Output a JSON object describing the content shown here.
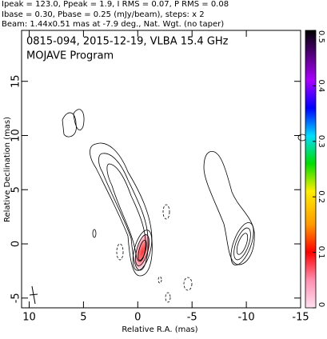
{
  "chart_data": {
    "type": "contour",
    "header": [
      "Ipeak = 123.0, Ppeak = 1.9, I RMS = 0.07, P RMS = 0.08",
      "Ibase = 0.30, Pbase = 0.25 (mJy/beam), steps: x 2",
      "Beam: 1.44x0.51 mas at -7.9 deg., Nat. Wgt. (no taper)"
    ],
    "title": "0815-094, 2015-12-19, VLBA 15.4 GHz",
    "subtitle": "MOJAVE Program",
    "xlabel": "Relative R.A. (mas)",
    "ylabel": "Relative Declination (mas)",
    "xlim": [
      10.7,
      -15
    ],
    "xticks": [
      10,
      5,
      0,
      -5,
      -10,
      -15
    ],
    "ylim": [
      -5.9,
      19.7
    ],
    "yticks": [
      -5,
      0,
      5,
      10,
      15
    ],
    "colorbar_lim": [
      0,
      0.5
    ],
    "colorbar_ticks": [
      0,
      0.1,
      0.2,
      0.3,
      0.4,
      0.5
    ]
  }
}
